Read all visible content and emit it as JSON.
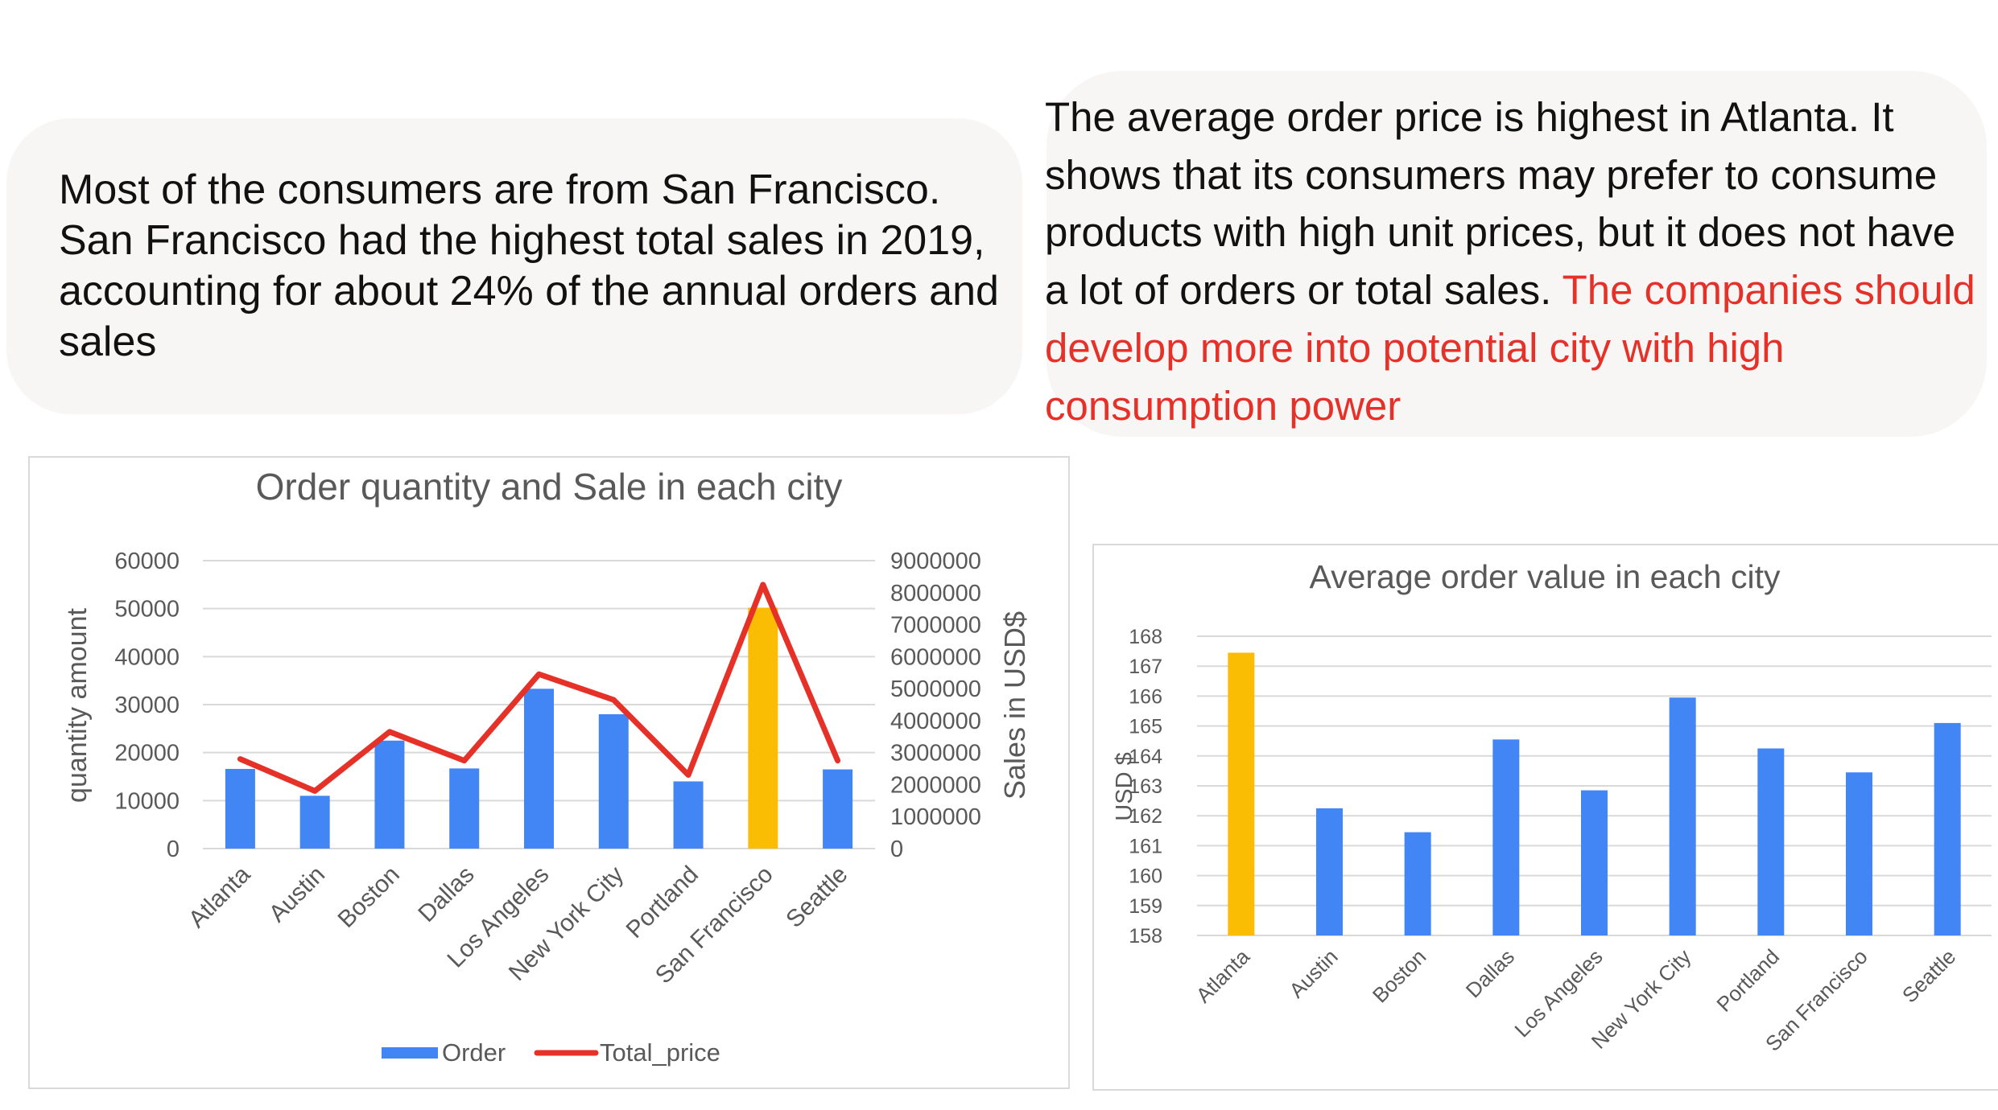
{
  "notes": {
    "left": "Most of the consumers are from San Francisco. San Francisco had the highest total sales in 2019, accounting for about 24% of the annual orders and sales",
    "right_black": "The average order price is highest in Atlanta. It shows that its consumers may prefer to consume products with high unit prices, but it does not have a lot of orders or total sales.",
    "right_red": "The companies should develop more into potential city with high consumption power"
  },
  "colors": {
    "bar": "#4285f4",
    "highlight": "#fbbc04",
    "line": "#e53127",
    "grid": "#d9d9d9",
    "text": "#595959",
    "note_red": "#e53127"
  },
  "chart_data": [
    {
      "type": "bar",
      "title": "Order quantity and Sale in each city",
      "categories": [
        "Atlanta",
        "Austin",
        "Boston",
        "Dallas",
        "Los Angeles",
        "New York City",
        "Portland",
        "San Francisco",
        "Seattle"
      ],
      "ylabel": "quantity amount",
      "y2label": "Sales in USD$",
      "ylim": [
        0,
        60000
      ],
      "y2lim": [
        0,
        9000000
      ],
      "yticks": [
        "0",
        "10000",
        "20000",
        "30000",
        "40000",
        "50000",
        "60000"
      ],
      "y2ticks": [
        "0",
        "1000000",
        "2000000",
        "3000000",
        "4000000",
        "5000000",
        "6000000",
        "7000000",
        "8000000",
        "9000000"
      ],
      "highlight_index": 7,
      "grid": true,
      "legend_position": "bottom",
      "series": [
        {
          "name": "Order",
          "type": "bar",
          "axis": "left",
          "values": [
            16600,
            11000,
            22500,
            16700,
            33300,
            28000,
            14000,
            50200,
            16500
          ]
        },
        {
          "name": "Total_price",
          "type": "line",
          "axis": "right",
          "values": [
            2800000,
            1800000,
            3650000,
            2750000,
            5450000,
            4650000,
            2300000,
            8250000,
            2750000
          ]
        }
      ]
    },
    {
      "type": "bar",
      "title": "Average order value in each city",
      "categories": [
        "Atlanta",
        "Austin",
        "Boston",
        "Dallas",
        "Los Angeles",
        "New York City",
        "Portland",
        "San Francisco",
        "Seattle"
      ],
      "ylabel": "USD $",
      "ylim": [
        158,
        168
      ],
      "yticks": [
        "158",
        "159",
        "160",
        "161",
        "162",
        "163",
        "164",
        "165",
        "166",
        "167",
        "168"
      ],
      "highlight_index": 0,
      "grid": true,
      "values": [
        167.45,
        162.25,
        161.45,
        164.55,
        162.85,
        165.95,
        164.25,
        163.45,
        165.1
      ]
    }
  ]
}
